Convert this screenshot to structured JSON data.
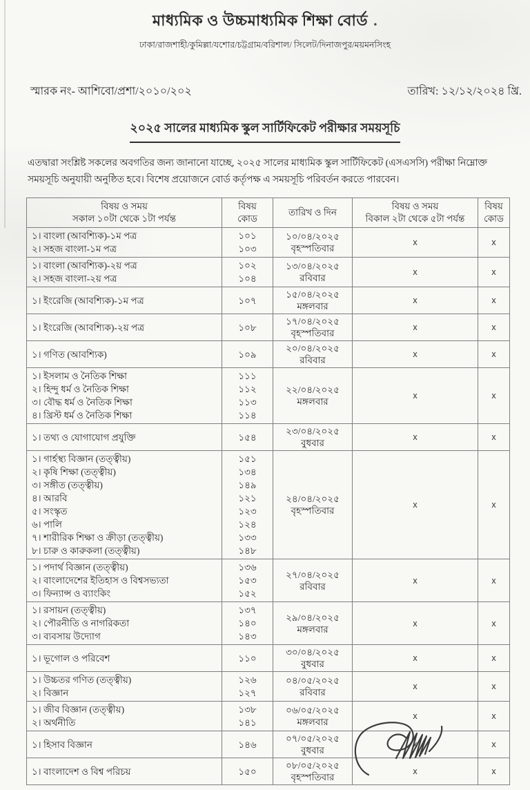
{
  "header": {
    "board_name": "মাধ্যমিক ও উচ্চমাধ্যমিক শিক্ষা বোর্ড",
    "board_name_dot": ".",
    "boards_line": "ঢাকা/রাজশাহী/কুমিল্লা/যশোর/চট্টগ্রাম/বরিশাল/ সিলেট/দিনাজপুর/ময়মনসিংহ",
    "memo_no": "স্মারক নং- আশিবো/প্রশা/২০১০/২০২",
    "issue_date": "তারিখ: ১২/১২/২০২৪ খ্রি."
  },
  "title": "২০২৫ সালের মাধ্যমিক স্কুল সার্টিফিকেট পরীক্ষার সময়সূচি",
  "notice_body": "এতদ্বারা সংশ্লিষ্ট সকলের অবগতির জন্য জানানো যাচ্ছে, ২০২৫ সালের মাধ্যমিক স্কুল সার্টিফিকেট (এসএসসি) পরীক্ষা নিম্নোক্ত সময়সূচি অনুযায়ী অনুষ্ঠিত হবে। বিশেষ প্রয়োজনে বোর্ড কর্তৃপক্ষ এ সময়সূচি পরিবর্তন করতে পারবেন।",
  "table": {
    "headers": {
      "col1_line1": "বিষয় ও সময়",
      "col1_line2": "সকাল ১০টা থেকে ১টা পর্যন্ত",
      "col2_line1": "বিষয়",
      "col2_line2": "কোড",
      "col3": "তারিখ ও দিন",
      "col4_line1": "বিষয় ও সময়",
      "col4_line2": "বিকাল ২টা থেকে ৫টা পর্যন্ত",
      "col5_line1": "বিষয়",
      "col5_line2": "কোড"
    },
    "rows": [
      {
        "subjects": [
          "১। বাংলা (আবশ্যিক)-১ম পত্র",
          "২। সহজ বাংলা-১ম পত্র"
        ],
        "codes": [
          "১০১",
          "১০৩"
        ],
        "date": "১০/০৪/২০২৫",
        "day": "বৃহস্পতিবার",
        "pm": "x",
        "pm_code": "x"
      },
      {
        "subjects": [
          "১। বাংলা (আবশ্যিক)-২য় পত্র",
          "২। সহজ বাংলা-২য় পত্র"
        ],
        "codes": [
          "১০২",
          "১০৪"
        ],
        "date": "১৩/০৪/২০২৫",
        "day": "রবিবার",
        "pm": "x",
        "pm_code": "x"
      },
      {
        "subjects": [
          "১। ইংরেজি (আবশ্যিক)-১ম পত্র"
        ],
        "codes": [
          "১০৭"
        ],
        "date": "১৫/০৪/২০২৫",
        "day": "মঙ্গলবার",
        "pm": "x",
        "pm_code": "x"
      },
      {
        "subjects": [
          "১। ইংরেজি (আবশ্যিক)-২য় পত্র"
        ],
        "codes": [
          "১০৮"
        ],
        "date": "১৭/০৪/২০২৫",
        "day": "বৃহস্পতিবার",
        "pm": "x",
        "pm_code": "x"
      },
      {
        "subjects": [
          "১। গণিত (আবশ্যিক)"
        ],
        "codes": [
          "১০৯"
        ],
        "date": "২০/০৪/২০২৫",
        "day": "রবিবার",
        "pm": "x",
        "pm_code": "x"
      },
      {
        "subjects": [
          "১। ইসলাম ও নৈতিক শিক্ষা",
          "২। হিন্দু ধর্ম ও নৈতিক শিক্ষা",
          "৩। বৌদ্ধ ধর্ম ও নৈতিক শিক্ষা",
          "৪। খ্রিস্ট ধর্ম ও নৈতিক শিক্ষা"
        ],
        "codes": [
          "১১১",
          "১১২",
          "১১৩",
          "১১৪"
        ],
        "date": "২২/০৪/২০২৫",
        "day": "মঙ্গলবার",
        "pm": "x",
        "pm_code": "x"
      },
      {
        "subjects": [
          "১। তথ্য ও যোগাযোগ প্রযুক্তি"
        ],
        "codes": [
          "১৫৪"
        ],
        "date": "২৩/০৪/২০২৫",
        "day": "বুধবার",
        "pm": "x",
        "pm_code": "x"
      },
      {
        "subjects": [
          "১। গার্হস্থ্য বিজ্ঞান (তত্ত্বীয়)",
          "২। কৃষি শিক্ষা (তত্ত্বীয়)",
          "৩। সঙ্গীত (তত্ত্বীয়)",
          "৪। আরবি",
          "৫। সংস্কৃত",
          "৬। পালি",
          "৭। শারীরিক শিক্ষা ও ক্রীড়া (তত্ত্বীয়)",
          "৮। চারু ও কারুকলা (তত্ত্বীয়)"
        ],
        "codes": [
          "১৫১",
          "১৩৪",
          "১৪৯",
          "১২১",
          "১২৩",
          "১২৪",
          "১৩৩",
          "১৪৮"
        ],
        "date": "২৪/০৪/২০২৫",
        "day": "বৃহস্পতিবার",
        "pm": "x",
        "pm_code": "x"
      },
      {
        "subjects": [
          "১। পদার্থ বিজ্ঞান (তত্ত্বীয়)",
          "২। বাংলাদেশের ইতিহাস ও বিশ্বসভ্যতা",
          "৩। ফিন্যান্স ও ব্যাংকিং"
        ],
        "codes": [
          "১৩৬",
          "১৫৩",
          "১৫২"
        ],
        "date": "২৭/০৪/২০২৫",
        "day": "রবিবার",
        "pm": "x",
        "pm_code": "x"
      },
      {
        "subjects": [
          "১। রসায়ন (তত্ত্বীয়)",
          "২। পৌরনীতি ও নাগরিকতা",
          "৩। ব্যবসায় উদ্যোগ"
        ],
        "codes": [
          "১৩৭",
          "১৪০",
          "১৪৩"
        ],
        "date": "২৯/০৪/২০২৫",
        "day": "মঙ্গলবার",
        "pm": "x",
        "pm_code": "x"
      },
      {
        "subjects": [
          "১। ভূগোল ও পরিবেশ"
        ],
        "codes": [
          "১১০"
        ],
        "date": "৩০/০৪/২০২৫",
        "day": "বুধবার",
        "pm": "x",
        "pm_code": "x"
      },
      {
        "subjects": [
          "১। উচ্চতর গণিত (তত্ত্বীয়)",
          "২। বিজ্ঞান"
        ],
        "codes": [
          "১২৬",
          "১২৭"
        ],
        "date": "০৪/০৫/২০২৫",
        "day": "রবিবার",
        "pm": "x",
        "pm_code": "x"
      },
      {
        "subjects": [
          "১। জীব বিজ্ঞান (তত্ত্বীয়)",
          "২। অর্থনীতি"
        ],
        "codes": [
          "১৩৮",
          "১৪১"
        ],
        "date": "০৬/০৫/২০২৫",
        "day": "মঙ্গলবার",
        "pm": "x",
        "pm_code": "x"
      },
      {
        "subjects": [
          "১। হিসাব বিজ্ঞান"
        ],
        "codes": [
          "১৪৬"
        ],
        "date": "০৭/০৫/২০২৫",
        "day": "বুধবার",
        "pm": "x",
        "pm_code": "x"
      },
      {
        "subjects": [
          "১। বাংলাদেশ ও বিশ্ব পরিচয়"
        ],
        "codes": [
          "১৫০"
        ],
        "date": "০৮/০৫/২০২৫",
        "day": "বৃহস্পতিবার",
        "pm": "x",
        "pm_code": "x"
      }
    ]
  }
}
